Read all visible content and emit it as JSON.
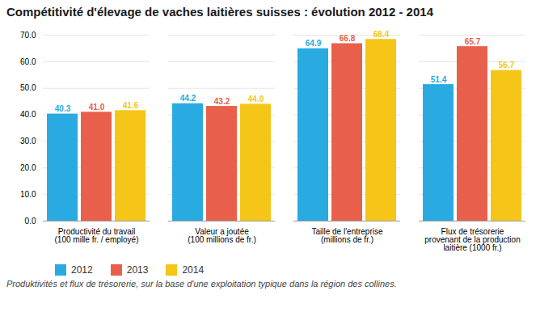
{
  "chart_data": {
    "type": "bar",
    "title": "Compétitivité d'élevage de vaches laitières suisses : évolution 2012 - 2014",
    "categories": [
      "Productivité du travail\n(100 mille fr. / employé)",
      "Valeur a joutée\n(100 millions de fr.)",
      "Taille de l'entreprise\n(millions de fr.)",
      "Flux de trésorerie\nprovenant de la production\nlaitière (1000 fr.)"
    ],
    "series": [
      {
        "name": "2012",
        "color": "#29ABE2",
        "values": [
          40.3,
          44.2,
          64.9,
          51.4
        ],
        "value_labels": [
          "40.3",
          "44.2",
          "64.9",
          "51.4"
        ]
      },
      {
        "name": "2013",
        "color": "#E8604C",
        "values": [
          41.0,
          43.2,
          66.8,
          65.7
        ],
        "value_labels": [
          "41.0",
          "43.2",
          "66.8",
          "65.7"
        ]
      },
      {
        "name": "2014",
        "color": "#F5C518",
        "values": [
          41.6,
          44.0,
          68.4,
          56.7
        ],
        "value_labels": [
          "41.6",
          "44.0",
          "68.4",
          "56.7"
        ]
      }
    ],
    "ylim": [
      0,
      70.0
    ],
    "yticks": [
      {
        "value": 0,
        "label": "0.0"
      },
      {
        "value": 10,
        "label": "10.0"
      },
      {
        "value": 20,
        "label": "20.0"
      },
      {
        "value": 30,
        "label": "30.0"
      },
      {
        "value": 40,
        "label": "40.0"
      },
      {
        "value": 50,
        "label": "50.0"
      },
      {
        "value": 60,
        "label": "60.0"
      },
      {
        "value": 70,
        "label": "70.0"
      }
    ],
    "grid": true,
    "data_labels": true,
    "legend": "bottom",
    "footnote": "Produktivités et flux de trésorerie, sur la base d'une exploitation typique dans la région des collines."
  }
}
